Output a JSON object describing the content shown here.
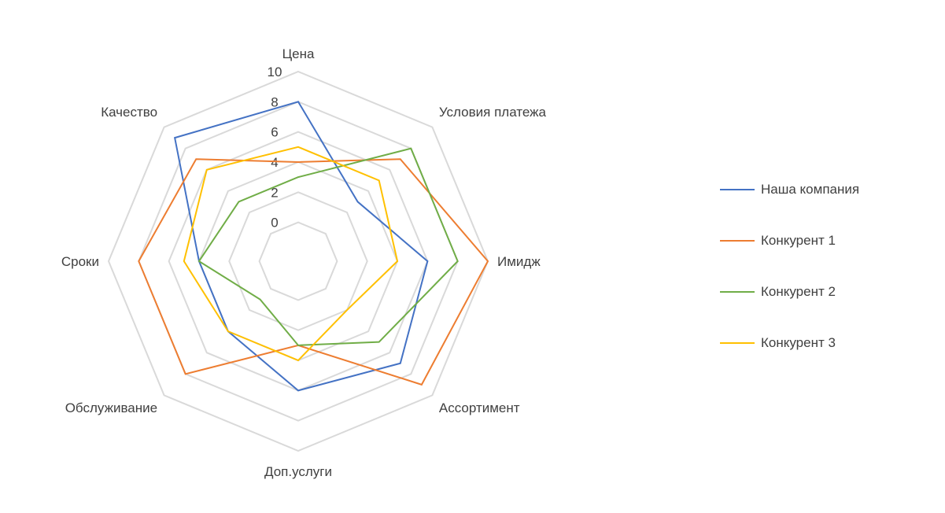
{
  "chart_data": {
    "type": "radar",
    "categories": [
      "Цена",
      "Условия платежа",
      "Имидж",
      "Ассортимент",
      "Доп.услуги",
      "Обслуживание",
      "Сроки",
      "Качество"
    ],
    "rlim": [
      0,
      10
    ],
    "ticks": [
      "0",
      "2",
      "4",
      "6",
      "8",
      "10"
    ],
    "grid": true,
    "legend_position": "right",
    "series": [
      {
        "name": "Наша компания",
        "color": "#4472C4",
        "values": [
          8,
          3,
          6,
          7,
          6,
          4,
          4,
          9
        ]
      },
      {
        "name": "Конкурент 1",
        "color": "#ED7D31",
        "values": [
          4,
          7,
          10,
          9,
          3,
          8,
          8,
          7
        ]
      },
      {
        "name": "Конкурент 2",
        "color": "#70AD47",
        "values": [
          3,
          8,
          8,
          5,
          3,
          1,
          4,
          3
        ]
      },
      {
        "name": "Конкурент 3",
        "color": "#FFC000",
        "values": [
          5,
          5,
          4,
          2,
          4,
          4,
          5,
          6
        ]
      }
    ]
  }
}
